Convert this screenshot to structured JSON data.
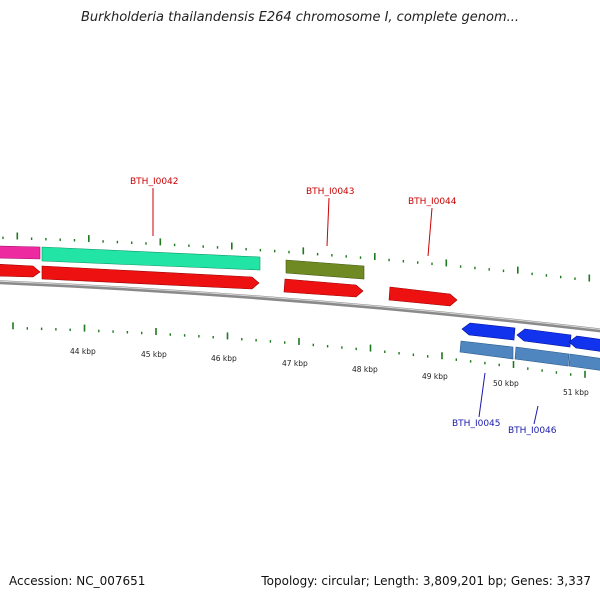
{
  "title": "Burkholderia thailandensis E264 chromosome I, complete genom...",
  "footer": {
    "accession": "Accession: NC_007651",
    "summary": "Topology: circular; Length: 3,809,201 bp; Genes: 3,337"
  },
  "colors": {
    "backbone": "#8a8a8a",
    "tick": "#1f7a1f",
    "label_forward": "#cc0000",
    "label_reverse": "#1a1aaa",
    "cds_forward": "#ee1111",
    "cds_reverse": "#1133ee",
    "gene_teal": "#22e5a5",
    "gene_olive": "#6f8a22",
    "gene_magenta": "#ee2aa0",
    "gene_steel": "#4f86c0"
  },
  "kbp_labels": [
    "44 kbp",
    "45 kbp",
    "46 kbp",
    "47 kbp",
    "48 kbp",
    "49 kbp",
    "50 kbp",
    "51 kbp"
  ],
  "gene_labels": [
    "BTH_I0042",
    "BTH_I0043",
    "BTH_I0044",
    "BTH_I0045",
    "BTH_I0046"
  ]
}
